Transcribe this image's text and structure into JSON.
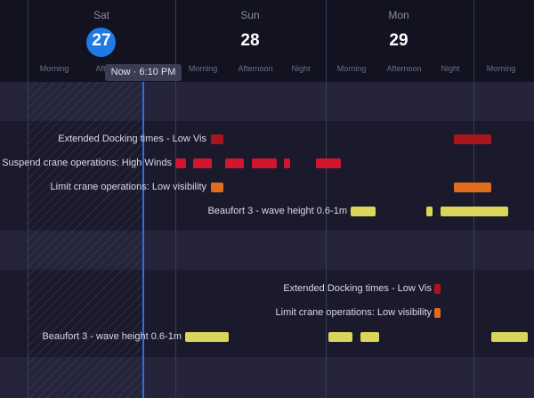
{
  "days": [
    {
      "name": "Sat",
      "number": "27",
      "today": true
    },
    {
      "name": "Sun",
      "number": "28",
      "today": false
    },
    {
      "name": "Mon",
      "number": "29",
      "today": false
    }
  ],
  "time_slots": [
    "Morning",
    "Afternoon",
    "Morning",
    "Afternoon",
    "Night",
    "Morning",
    "Afternoon",
    "Night",
    "Morning"
  ],
  "now_label": "Now · 6:10 PM",
  "colors": {
    "dark_red": "#a8161d",
    "red": "#d3162f",
    "orange": "#e06c1e",
    "yellow": "#d9d65a",
    "now_line": "#2b6fe0",
    "today_circle": "#1f7ae8"
  },
  "group1": {
    "rows": [
      {
        "label": "Extended Docking times - Low Vis",
        "color": "dark_red"
      },
      {
        "label": "Suspend crane operations: High Winds",
        "color": "red"
      },
      {
        "label": "Limit crane operations: Low visibility",
        "color": "orange"
      },
      {
        "label": "Beaufort 3 - wave height 0.6-1m",
        "color": "yellow"
      }
    ]
  },
  "group2": {
    "rows": [
      {
        "label": "Extended Docking times - Low Vis",
        "color": "dark_red"
      },
      {
        "label": "Limit crane operations: Low visibility",
        "color": "orange"
      },
      {
        "label": "Beaufort 3 - wave height 0.6-1m",
        "color": "yellow"
      }
    ]
  }
}
